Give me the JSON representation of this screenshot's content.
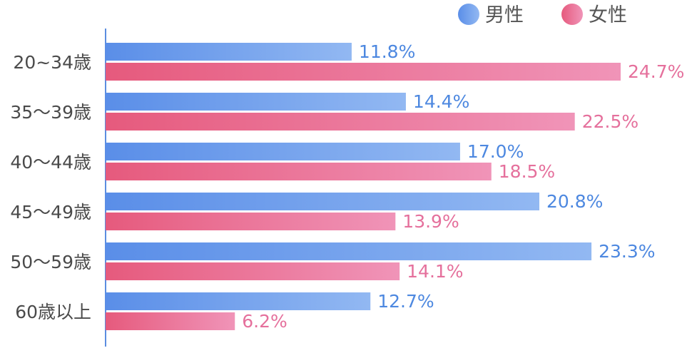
{
  "chart_data": {
    "type": "bar",
    "orientation": "horizontal",
    "categories": [
      "20~34歳",
      "35〜39歳",
      "40〜44歳",
      "45〜49歳",
      "50〜59歳",
      "60歳以上"
    ],
    "series": [
      {
        "name": "男性",
        "values": [
          11.8,
          14.4,
          17.0,
          20.8,
          23.3,
          12.7
        ],
        "labels": [
          "11.8%",
          "14.4%",
          "17.0%",
          "20.8%",
          "23.3%",
          "12.7%"
        ],
        "color": "#5a8ee8",
        "color_light": "#92b8f2",
        "label_color": "#4d88e0"
      },
      {
        "name": "女性",
        "values": [
          24.7,
          22.5,
          18.5,
          13.9,
          14.1,
          6.2
        ],
        "labels": [
          "24.7%",
          "22.5%",
          "18.5%",
          "13.9%",
          "14.1%",
          "6.2%"
        ],
        "color": "#e65a7d",
        "color_light": "#f094b8",
        "label_color": "#e5709c"
      }
    ],
    "xlim": [
      0,
      24.7
    ],
    "grid": false,
    "legend_position": "top-right",
    "axis_color": "#5b8de0"
  }
}
